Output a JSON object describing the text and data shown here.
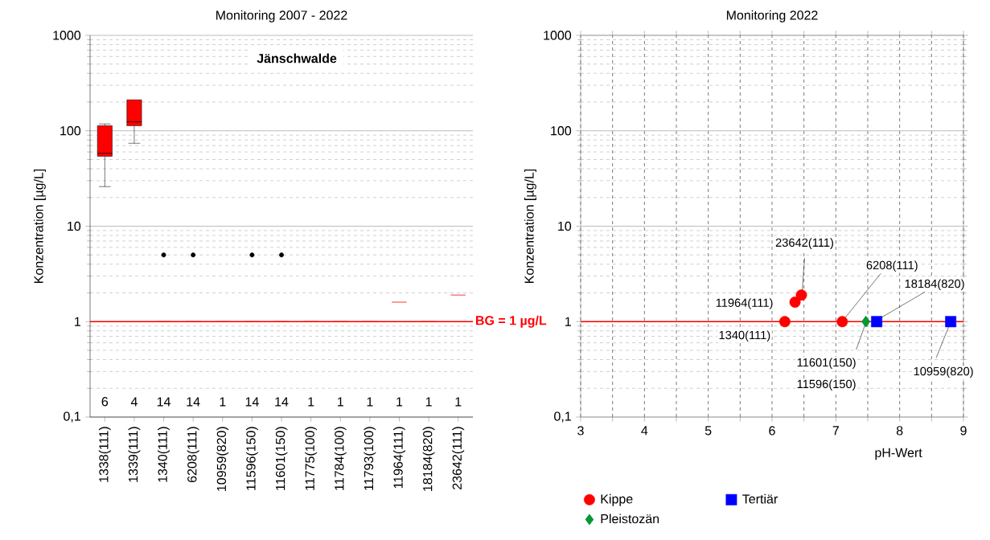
{
  "chart_data": [
    {
      "type": "box",
      "title": "Monitoring 2007 - 2022",
      "ylabel": "Konzentration [µg/L]",
      "categories": [
        "1338(111)",
        "1339(111)",
        "1340(111)",
        "6208(111)",
        "10959(820)",
        "11596(150)",
        "11601(150)",
        "11775(100)",
        "11784(100)",
        "11793(100)",
        "11964(111)",
        "18184(820)",
        "23642(111)"
      ],
      "series": [
        {
          "color": "#ff0000",
          "boxes": [
            {
              "low": 26,
              "q1": 54,
              "median": 58,
              "q3": 113,
              "high": 118
            },
            {
              "low": 74,
              "q1": 113,
              "median": 124,
              "q3": 211,
              "high": 211
            },
            {
              "low": 1,
              "q1": 1,
              "median": 1,
              "q3": 1,
              "high": 1,
              "outliers": [
                5
              ]
            },
            {
              "low": 1,
              "q1": 1,
              "median": 1,
              "q3": 1,
              "high": 1,
              "outliers": [
                5
              ]
            },
            {
              "low": 1,
              "q1": 1,
              "median": 1,
              "q3": 1,
              "high": 1
            },
            {
              "low": 1,
              "q1": 1,
              "median": 1,
              "q3": 1,
              "high": 1,
              "outliers": [
                5
              ]
            },
            {
              "low": 1,
              "q1": 1,
              "median": 1,
              "q3": 1,
              "high": 1,
              "outliers": [
                5
              ]
            },
            {
              "low": 1,
              "q1": 1,
              "median": 1,
              "q3": 1,
              "high": 1
            },
            {
              "low": 1,
              "q1": 1,
              "median": 1,
              "q3": 1,
              "high": 1
            },
            {
              "low": 1,
              "q1": 1,
              "median": 1,
              "q3": 1,
              "high": 1
            },
            {
              "low": 1.6,
              "q1": 1.6,
              "median": 1.6,
              "q3": 1.6,
              "high": 1.6
            },
            {
              "low": 1,
              "q1": 1,
              "median": 1,
              "q3": 1,
              "high": 1
            },
            {
              "low": 1.9,
              "q1": 1.9,
              "median": 1.9,
              "q3": 1.9,
              "high": 1.9
            }
          ]
        }
      ],
      "log": "y",
      "ylim": [
        0.1,
        1000
      ],
      "yticks": [
        {
          "value": 0.1,
          "label": "0,1"
        },
        1,
        10,
        100,
        1000
      ],
      "grid": "y",
      "ref_lines": [
        {
          "axis": "y",
          "value": 1,
          "label": "BG = 1 µg/L",
          "color": "#ff0000"
        }
      ],
      "annotations": [
        "Jänschwalde",
        "6",
        "4",
        "14",
        "14",
        "1",
        "14",
        "14",
        "1",
        "1",
        "1",
        "1",
        "1",
        "1"
      ]
    },
    {
      "type": "scatter",
      "title": "Monitoring 2022",
      "xlabel": "pH-Wert",
      "ylabel": "Konzentration [µg/L]",
      "xlim": [
        3,
        9
      ],
      "xticks": [
        3,
        {
          "value": 3.5,
          "label": null
        },
        4,
        {
          "value": 4.5,
          "label": null
        },
        5,
        {
          "value": 5.5,
          "label": null
        },
        6,
        {
          "value": 6.5,
          "label": null
        },
        7,
        {
          "value": 7.5,
          "label": null
        },
        8,
        {
          "value": 8.5,
          "label": null
        },
        9
      ],
      "log": "y",
      "ylim": [
        0.1,
        1000
      ],
      "yticks": [
        {
          "value": 0.1,
          "label": "0,1"
        },
        1,
        10,
        100,
        1000
      ],
      "grid": true,
      "legend": "bottom",
      "series": [
        {
          "name": "Kippe",
          "color": "#ff0000",
          "marker": "circle",
          "x": [
            6.2,
            6.36,
            6.46,
            7.1
          ],
          "values": [
            1,
            1.6,
            1.9,
            1
          ]
        },
        {
          "name": "Pleistozän",
          "color": "#009933",
          "marker": "diamond",
          "x": [
            7.47,
            7.47
          ],
          "values": [
            1,
            1
          ]
        },
        {
          "name": "Tertiär",
          "color": "#0000ff",
          "marker": "square",
          "x": [
            7.64,
            8.8
          ],
          "values": [
            1,
            1
          ]
        }
      ],
      "ref_lines": [
        {
          "axis": "y",
          "value": 1,
          "color": "#ff0000"
        }
      ],
      "annotations": [
        {
          "text": "1340(111)",
          "x": 6.2,
          "y": 1
        },
        {
          "text": "11964(111)",
          "x": 6.36,
          "y": 1.6
        },
        {
          "text": "23642(111)",
          "x": 6.46,
          "y": 1.9
        },
        {
          "text": "6208(111)",
          "x": 7.1,
          "y": 1
        },
        {
          "text": "18184(820)",
          "x": 7.64,
          "y": 1
        },
        {
          "text": "11601(150)",
          "x": 7.47,
          "y": 1
        },
        "11596(150)",
        {
          "text": "10959(820)",
          "x": 8.8,
          "y": 1
        }
      ]
    }
  ]
}
